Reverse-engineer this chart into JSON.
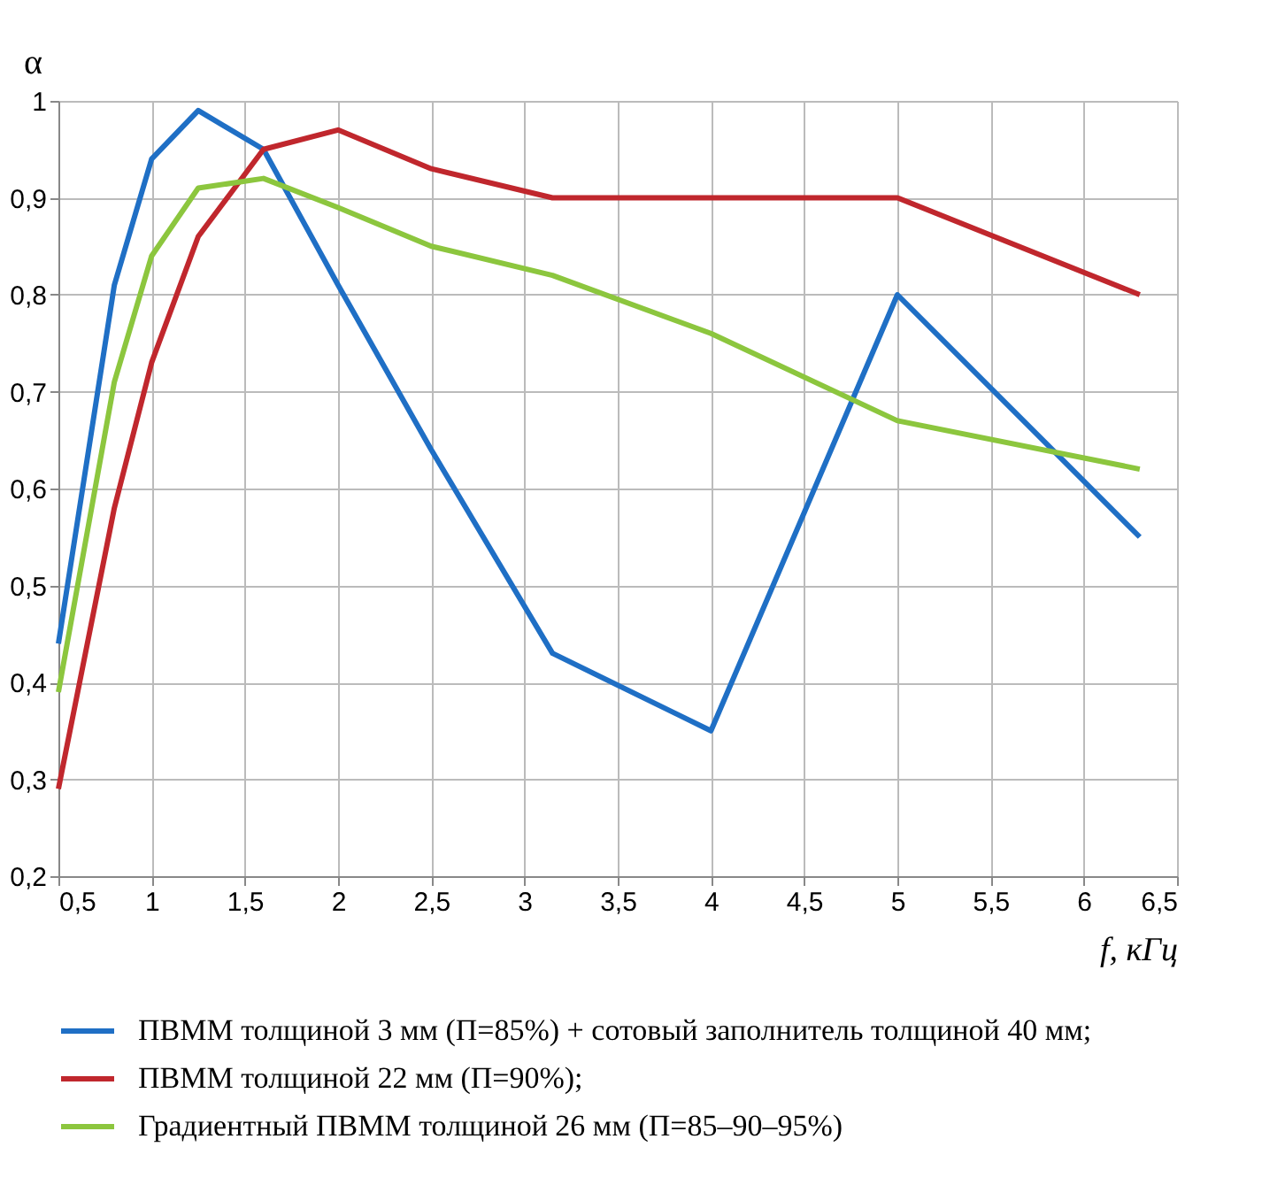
{
  "chart_data": {
    "type": "line",
    "xlabel": "f, кГц",
    "ylabel": "α",
    "xlim": [
      0.5,
      6.5
    ],
    "xticks": [
      {
        "value": 0.5,
        "label": "0,5"
      },
      {
        "value": 1,
        "label": "1"
      },
      {
        "value": 1.5,
        "label": "1,5"
      },
      {
        "value": 2,
        "label": "2"
      },
      {
        "value": 2.5,
        "label": "2,5"
      },
      {
        "value": 3,
        "label": "3"
      },
      {
        "value": 3.5,
        "label": "3,5"
      },
      {
        "value": 4,
        "label": "4"
      },
      {
        "value": 4.5,
        "label": "4,5"
      },
      {
        "value": 5,
        "label": "5"
      },
      {
        "value": 5.5,
        "label": "5,5"
      },
      {
        "value": 6,
        "label": "6"
      },
      {
        "value": 6.5,
        "label": "6,5"
      }
    ],
    "ylim": [
      0.2,
      1
    ],
    "yticks": [
      {
        "value": 0.2,
        "label": "0,2"
      },
      {
        "value": 0.3,
        "label": "0,3"
      },
      {
        "value": 0.4,
        "label": "0,4"
      },
      {
        "value": 0.5,
        "label": "0,5"
      },
      {
        "value": 0.6,
        "label": "0,6"
      },
      {
        "value": 0.7,
        "label": "0,7"
      },
      {
        "value": 0.8,
        "label": "0,8"
      },
      {
        "value": 0.9,
        "label": "0,9"
      },
      {
        "value": 1,
        "label": "1"
      }
    ],
    "x": [
      0.5,
      0.8,
      1,
      1.25,
      1.6,
      2,
      2.5,
      3.15,
      4,
      5,
      6.3
    ],
    "series": [
      {
        "name": "ПВММ толщиной 3 мм (П=85%) + сотовый заполнитель толщиной 40 мм;",
        "color": "#1f6fc5",
        "values": [
          0.44,
          0.81,
          0.94,
          0.99,
          0.95,
          0.81,
          0.64,
          0.43,
          0.35,
          0.8,
          0.55
        ]
      },
      {
        "name": "ПВММ толщиной 22 мм (П=90%);",
        "color": "#c0272d",
        "values": [
          0.29,
          0.58,
          0.73,
          0.86,
          0.95,
          0.97,
          0.93,
          0.9,
          0.9,
          0.9,
          0.8
        ]
      },
      {
        "name": "Градиентный ПВММ толщиной 26 мм (П=85–90–95%)",
        "color": "#8cc63e",
        "values": [
          0.39,
          0.71,
          0.84,
          0.91,
          0.92,
          0.89,
          0.85,
          0.82,
          0.76,
          0.67,
          0.62
        ]
      }
    ],
    "grid": true,
    "legend": "bottom",
    "marker": "none",
    "line_style": "solid"
  }
}
